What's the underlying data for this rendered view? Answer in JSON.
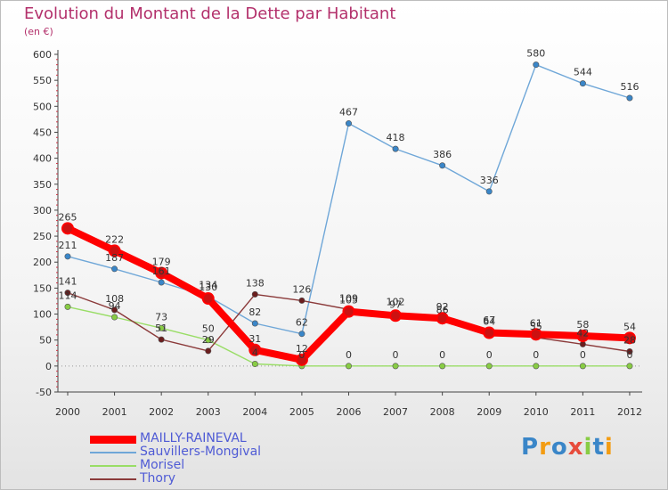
{
  "chart_data": {
    "type": "line",
    "title": "Evolution du Montant de la Dette par Habitant",
    "unit": "(en €)",
    "x": [
      "2000",
      "2001",
      "2002",
      "2003",
      "2004",
      "2005",
      "2006",
      "2007",
      "2008",
      "2009",
      "2010",
      "2011",
      "2012"
    ],
    "ylim": [
      -50,
      600
    ],
    "yticks": [
      -50,
      0,
      50,
      100,
      150,
      200,
      250,
      300,
      350,
      400,
      450,
      500,
      550,
      600
    ],
    "grid": false,
    "legend_position": "bottom-left",
    "series": [
      {
        "name": "MAILLY-RAINEVAL",
        "color": "#ff0000",
        "marker": "#cc1111",
        "values": [
          265,
          222,
          179,
          130,
          31,
          12,
          105,
          97,
          92,
          64,
          61,
          58,
          54
        ]
      },
      {
        "name": "Sauvillers-Mongival",
        "color": "#6fa7d8",
        "marker": "#3a86c8",
        "values": [
          211,
          187,
          161,
          134,
          82,
          62,
          467,
          418,
          386,
          336,
          580,
          544,
          516
        ]
      },
      {
        "name": "Morisel",
        "color": "#99dd66",
        "marker": "#88cc44",
        "values": [
          114,
          94,
          73,
          50,
          4,
          0,
          0,
          0,
          0,
          0,
          0,
          0,
          0
        ]
      },
      {
        "name": "Thory",
        "color": "#8b3a3a",
        "marker": "#6b1e1e",
        "values": [
          141,
          108,
          51,
          29,
          138,
          126,
          109,
          102,
          86,
          67,
          55,
          42,
          28
        ]
      }
    ]
  },
  "logo": {
    "letters": [
      "P",
      "r",
      "o",
      "x",
      "i",
      "t",
      "i"
    ],
    "colors": [
      "#3a86c8",
      "#f39c12",
      "#3a86c8",
      "#e74c3c",
      "#88cc44",
      "#3a86c8",
      "#f39c12"
    ]
  }
}
